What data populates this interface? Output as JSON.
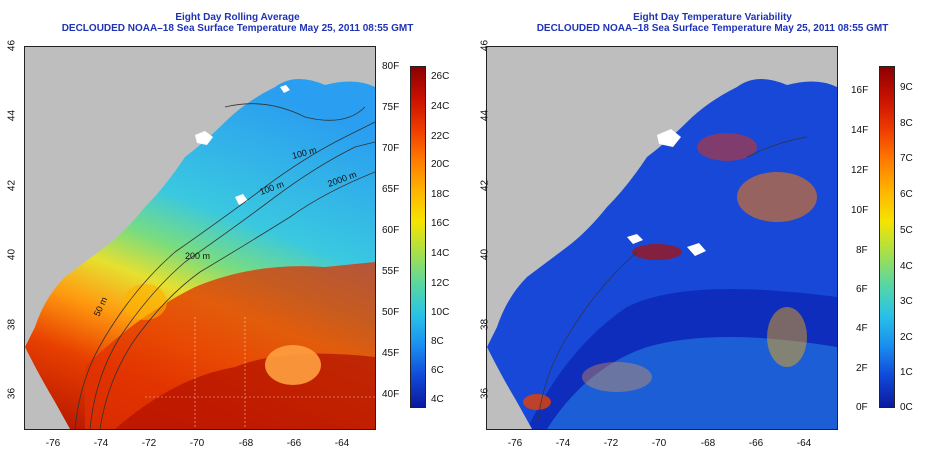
{
  "left_panel": {
    "title": "Eight Day Rolling Average",
    "subtitle": "DECLOUDED NOAA–18 Sea Surface Temperature May 25, 2011 08:55 GMT",
    "contour_labels": [
      "100 m",
      "2000 m",
      "100 m",
      "200 m",
      "50 m"
    ],
    "colorbar_f": [
      "80F",
      "75F",
      "70F",
      "65F",
      "60F",
      "55F",
      "50F",
      "45F",
      "40F"
    ],
    "colorbar_c": [
      "26C",
      "24C",
      "22C",
      "20C",
      "18C",
      "16C",
      "14C",
      "12C",
      "10C",
      "8C",
      "6C",
      "4C"
    ],
    "colorbar_colors": [
      "#8b0000",
      "#c81000",
      "#ee3a00",
      "#ff7a00",
      "#ffb400",
      "#f5e400",
      "#a8e04a",
      "#5ad7a0",
      "#2ac3e6",
      "#1a8ff0",
      "#1049d8",
      "#0a1a9e"
    ]
  },
  "right_panel": {
    "title": "Eight Day Temperature Variability",
    "subtitle": "DECLOUDED NOAA–18 Sea Surface Temperature May 25, 2011 08:55 GMT",
    "colorbar_f": [
      "16F",
      "14F",
      "12F",
      "10F",
      "8F",
      "6F",
      "4F",
      "2F",
      "0F"
    ],
    "colorbar_c": [
      "9C",
      "8C",
      "7C",
      "6C",
      "5C",
      "4C",
      "3C",
      "2C",
      "1C",
      "0C"
    ],
    "colorbar_colors": [
      "#8b0000",
      "#c81000",
      "#ee3a00",
      "#ff7a00",
      "#ffb400",
      "#f5e400",
      "#a8e04a",
      "#5ad7a0",
      "#2ac3e6",
      "#1a8ff0",
      "#1049d8",
      "#0a1a9e"
    ]
  },
  "axes": {
    "latitude_ticks": [
      "46",
      "44",
      "42",
      "40",
      "38",
      "36"
    ],
    "longitude_ticks": [
      "-76",
      "-74",
      "-72",
      "-70",
      "-68",
      "-66",
      "-64"
    ]
  },
  "colors": {
    "title": "#1f33b5",
    "land": "#bebebe"
  }
}
